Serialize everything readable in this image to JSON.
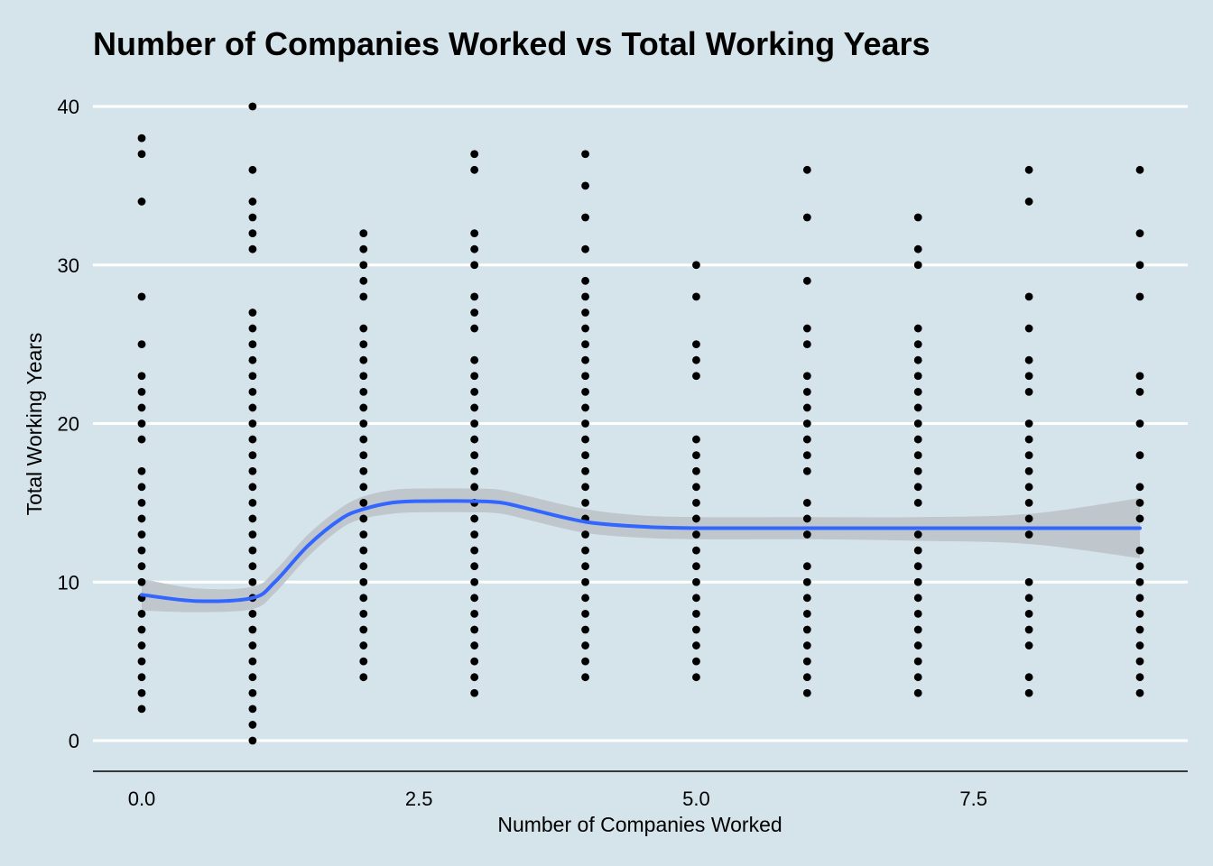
{
  "chart_data": {
    "type": "scatter",
    "title": "Number of Companies Worked vs Total Working Years",
    "xlabel": "Number of Companies Worked",
    "ylabel": "Total Working Years",
    "xlim": [
      -0.2,
      9.2
    ],
    "ylim": [
      -2,
      41
    ],
    "x_ticks": [
      0,
      2.5,
      5,
      7.5
    ],
    "x_tick_labels": [
      "0.0",
      "2.5",
      "5.0",
      "7.5"
    ],
    "y_ticks": [
      0,
      10,
      20,
      30,
      40
    ],
    "y_tick_labels": [
      "0",
      "10",
      "20",
      "30",
      "40"
    ],
    "grid": "horizontal-major",
    "legend": "none",
    "points": [
      {
        "x": 0,
        "y": [
          2,
          3,
          4,
          5,
          6,
          7,
          8,
          9,
          10,
          11,
          12,
          13,
          14,
          15,
          16,
          17,
          19,
          20,
          21,
          22,
          23,
          25,
          28,
          34,
          37,
          38
        ]
      },
      {
        "x": 1,
        "y": [
          0,
          1,
          2,
          3,
          4,
          5,
          6,
          7,
          8,
          9,
          10,
          11,
          12,
          13,
          14,
          15,
          16,
          17,
          18,
          19,
          20,
          21,
          22,
          23,
          24,
          25,
          26,
          27,
          31,
          32,
          33,
          34,
          36,
          40
        ]
      },
      {
        "x": 2,
        "y": [
          4,
          5,
          6,
          7,
          8,
          9,
          10,
          11,
          12,
          13,
          14,
          15,
          16,
          17,
          18,
          19,
          20,
          21,
          22,
          23,
          24,
          25,
          26,
          28,
          29,
          30,
          31,
          32
        ]
      },
      {
        "x": 3,
        "y": [
          3,
          4,
          5,
          6,
          7,
          8,
          9,
          10,
          11,
          12,
          13,
          14,
          15,
          16,
          17,
          18,
          19,
          20,
          21,
          22,
          23,
          24,
          26,
          27,
          28,
          30,
          31,
          32,
          36,
          37
        ]
      },
      {
        "x": 4,
        "y": [
          4,
          5,
          6,
          7,
          8,
          9,
          10,
          11,
          12,
          13,
          14,
          15,
          16,
          17,
          18,
          19,
          20,
          21,
          22,
          23,
          24,
          25,
          26,
          27,
          28,
          29,
          31,
          33,
          35,
          37
        ]
      },
      {
        "x": 5,
        "y": [
          4,
          5,
          6,
          7,
          8,
          9,
          10,
          11,
          12,
          13,
          14,
          15,
          16,
          17,
          18,
          19,
          23,
          24,
          25,
          28,
          30
        ]
      },
      {
        "x": 6,
        "y": [
          3,
          4,
          5,
          6,
          7,
          8,
          9,
          10,
          11,
          13,
          14,
          15,
          17,
          18,
          19,
          20,
          21,
          22,
          23,
          25,
          26,
          29,
          33,
          36
        ]
      },
      {
        "x": 7,
        "y": [
          3,
          4,
          5,
          6,
          7,
          8,
          9,
          10,
          11,
          12,
          13,
          15,
          16,
          17,
          18,
          19,
          20,
          21,
          22,
          23,
          24,
          25,
          26,
          30,
          31,
          33
        ]
      },
      {
        "x": 8,
        "y": [
          3,
          4,
          6,
          7,
          8,
          9,
          10,
          13,
          14,
          15,
          16,
          17,
          18,
          19,
          20,
          22,
          23,
          24,
          26,
          28,
          34,
          36
        ]
      },
      {
        "x": 9,
        "y": [
          3,
          4,
          5,
          6,
          7,
          8,
          9,
          10,
          11,
          12,
          14,
          15,
          16,
          18,
          20,
          22,
          23,
          28,
          30,
          32,
          36
        ]
      }
    ],
    "smooth": {
      "color": "#3366ff",
      "band_color": "#bcc3c9",
      "x": [
        0,
        0.5,
        1,
        1.2,
        1.5,
        1.8,
        2,
        2.25,
        2.5,
        3,
        3.25,
        3.5,
        4,
        4.5,
        5,
        6,
        7,
        8,
        9
      ],
      "y": [
        9.2,
        8.8,
        9.0,
        10.0,
        12.3,
        14.0,
        14.6,
        15.0,
        15.1,
        15.1,
        15.0,
        14.6,
        13.8,
        13.5,
        13.4,
        13.4,
        13.4,
        13.4,
        13.4
      ],
      "lower": [
        8.2,
        8.1,
        8.3,
        9.3,
        11.6,
        13.4,
        14.0,
        14.3,
        14.4,
        14.4,
        14.3,
        13.9,
        13.1,
        12.8,
        12.7,
        12.7,
        12.6,
        12.4,
        11.5
      ],
      "upper": [
        10.2,
        9.6,
        9.7,
        10.7,
        13.0,
        14.7,
        15.4,
        15.8,
        15.9,
        15.9,
        15.8,
        15.4,
        14.6,
        14.2,
        14.1,
        14.1,
        14.1,
        14.3,
        15.3
      ]
    }
  }
}
